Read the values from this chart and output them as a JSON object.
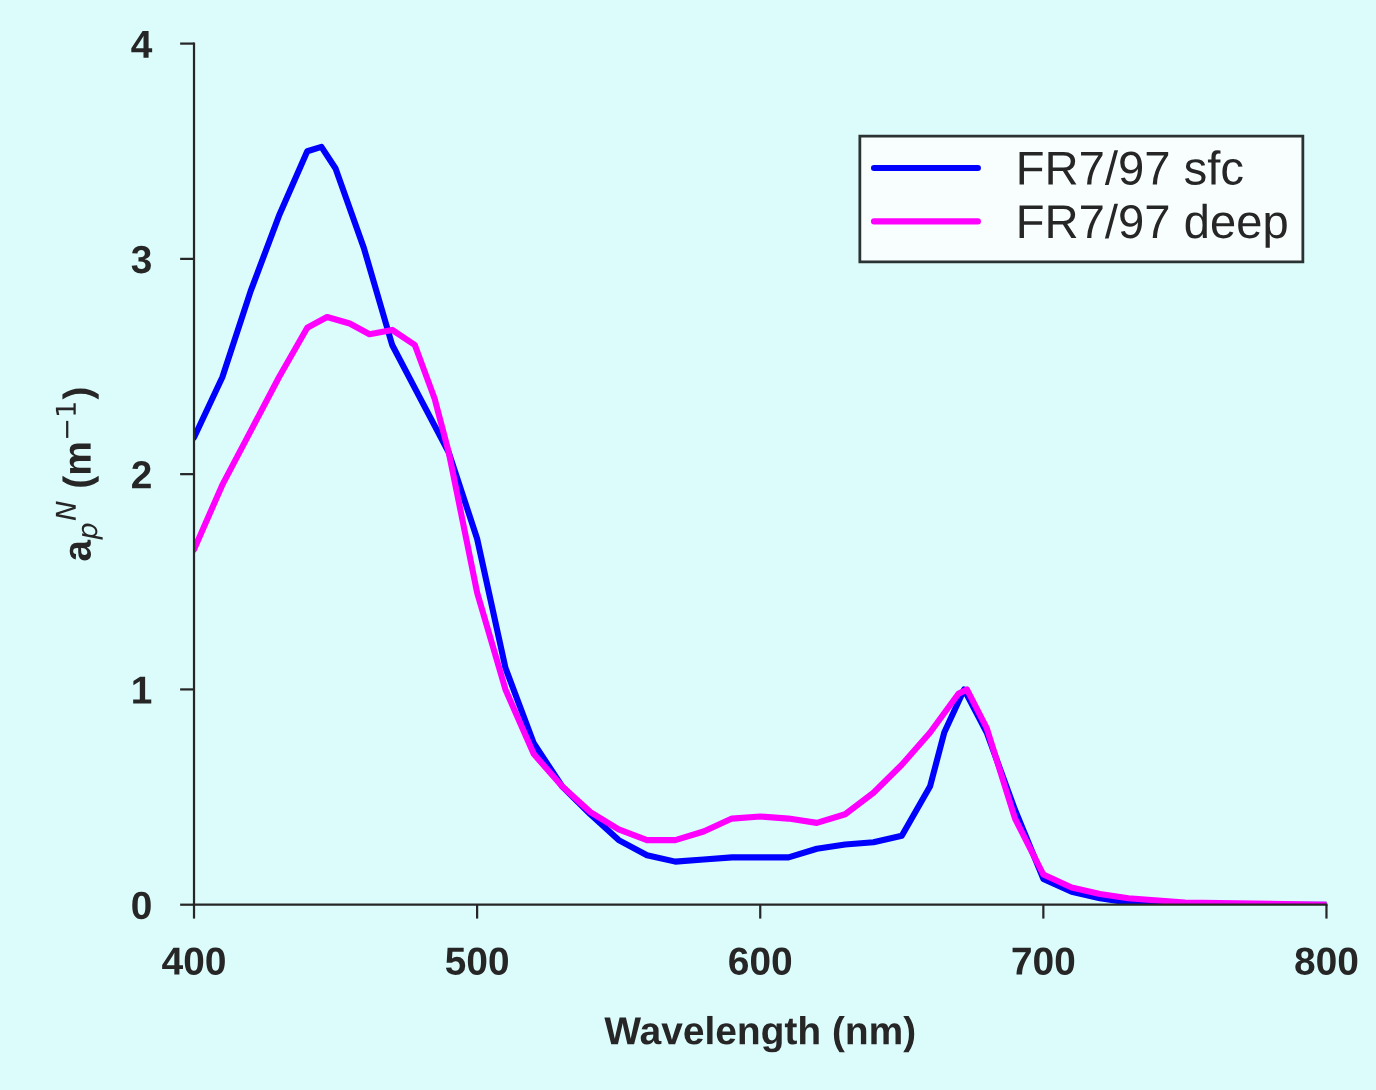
{
  "chart_data": {
    "type": "line",
    "xlabel": "Wavelength (nm)",
    "ylabel": "a$_{p}$$^{N}$ (m$^{−1}$)",
    "xlim": [
      400,
      800
    ],
    "xticks": [
      400,
      500,
      600,
      700,
      800
    ],
    "ylim": [
      0,
      4
    ],
    "yticks": [
      0,
      1,
      2,
      3,
      4
    ],
    "grid": false,
    "legend": "top right",
    "marker": "none",
    "line_style": "solid",
    "series": [
      {
        "name": "FR7/97 sfc",
        "color": "#0000ff",
        "x": [
          400,
          410,
          420,
          430,
          440,
          445,
          450,
          460,
          470,
          480,
          490,
          500,
          510,
          520,
          530,
          540,
          550,
          560,
          570,
          580,
          590,
          600,
          610,
          620,
          630,
          640,
          650,
          660,
          665,
          672,
          680,
          690,
          700,
          710,
          720,
          730,
          750,
          800
        ],
        "values": [
          2.17,
          2.45,
          2.85,
          3.2,
          3.5,
          3.52,
          3.42,
          3.05,
          2.6,
          2.35,
          2.1,
          1.7,
          1.1,
          0.75,
          0.55,
          0.42,
          0.3,
          0.23,
          0.2,
          0.21,
          0.22,
          0.22,
          0.22,
          0.26,
          0.28,
          0.29,
          0.32,
          0.55,
          0.8,
          1.0,
          0.8,
          0.44,
          0.12,
          0.06,
          0.03,
          0.01,
          0.0,
          0.0
        ]
      },
      {
        "name": "FR7/97 deep",
        "color": "#ff00ff",
        "x": [
          400,
          410,
          420,
          430,
          440,
          447,
          455,
          462,
          470,
          478,
          485,
          490,
          500,
          510,
          520,
          530,
          540,
          550,
          560,
          570,
          580,
          590,
          600,
          610,
          620,
          630,
          640,
          650,
          660,
          670,
          673,
          680,
          690,
          700,
          710,
          720,
          730,
          750,
          800
        ],
        "values": [
          1.65,
          1.95,
          2.2,
          2.45,
          2.68,
          2.73,
          2.7,
          2.65,
          2.67,
          2.6,
          2.35,
          2.1,
          1.45,
          1.0,
          0.7,
          0.55,
          0.43,
          0.35,
          0.3,
          0.3,
          0.34,
          0.4,
          0.41,
          0.4,
          0.38,
          0.42,
          0.52,
          0.65,
          0.8,
          0.98,
          1.0,
          0.82,
          0.4,
          0.14,
          0.08,
          0.05,
          0.03,
          0.01,
          0.0
        ]
      }
    ]
  }
}
